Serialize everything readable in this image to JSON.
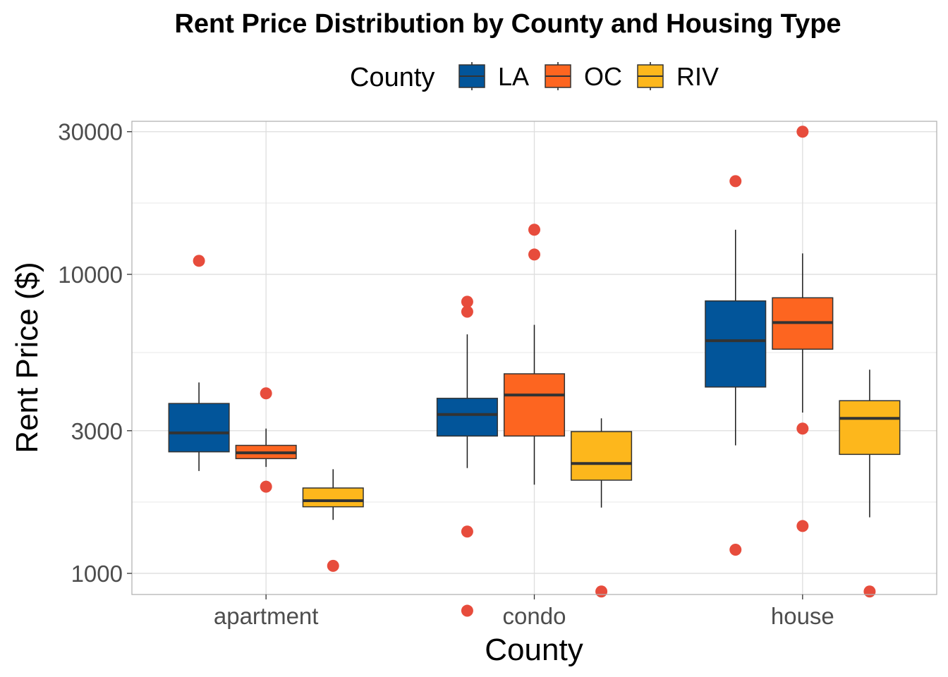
{
  "chart_data": {
    "type": "box",
    "title": "Rent Price Distribution by County and Housing Type",
    "xlabel": "County",
    "ylabel": "Rent Price ($)",
    "y_scale": "log10",
    "ylim": [
      850,
      32500
    ],
    "y_ticks": [
      1000,
      3000,
      10000,
      30000
    ],
    "y_tick_labels": [
      "1000",
      "3000",
      "10000",
      "30000"
    ],
    "categories": [
      "apartment",
      "condo",
      "house"
    ],
    "legend": {
      "title": "County",
      "position": "top"
    },
    "grid": true,
    "outlier_color": "#e74c3c",
    "series": [
      {
        "name": "LA",
        "color": "#02559a",
        "boxes": [
          {
            "whisker_low": 2200,
            "q1": 2550,
            "median": 2950,
            "q3": 3700,
            "whisker_high": 4350,
            "outliers": [
              11100
            ]
          },
          {
            "whisker_low": 2250,
            "q1": 2880,
            "median": 3400,
            "q3": 3850,
            "whisker_high": 6300,
            "outliers": [
              1380,
              750,
              7500,
              8100
            ]
          },
          {
            "whisker_low": 2680,
            "q1": 4200,
            "median": 6000,
            "q3": 8150,
            "whisker_high": 14100,
            "outliers": [
              1200,
              20500
            ]
          }
        ]
      },
      {
        "name": "OC",
        "color": "#fd6520",
        "boxes": [
          {
            "whisker_low": 2270,
            "q1": 2420,
            "median": 2530,
            "q3": 2680,
            "whisker_high": 3050,
            "outliers": [
              1950,
              4000
            ]
          },
          {
            "whisker_low": 1980,
            "q1": 2880,
            "median": 3950,
            "q3": 4650,
            "whisker_high": 6780,
            "outliers": [
              11650,
              14100
            ]
          },
          {
            "whisker_low": 3450,
            "q1": 5620,
            "median": 6900,
            "q3": 8350,
            "whisker_high": 11750,
            "outliers": [
              1440,
              3050,
              30000
            ]
          }
        ]
      },
      {
        "name": "RIV",
        "color": "#fdb71c",
        "boxes": [
          {
            "whisker_low": 1510,
            "q1": 1670,
            "median": 1750,
            "q3": 1930,
            "whisker_high": 2230,
            "outliers": [
              1060
            ]
          },
          {
            "whisker_low": 1660,
            "q1": 2050,
            "median": 2330,
            "q3": 2980,
            "whisker_high": 3300,
            "outliers": [
              870
            ]
          },
          {
            "whisker_low": 1540,
            "q1": 2500,
            "median": 3300,
            "q3": 3780,
            "whisker_high": 4800,
            "outliers": [
              870
            ]
          }
        ]
      }
    ]
  }
}
